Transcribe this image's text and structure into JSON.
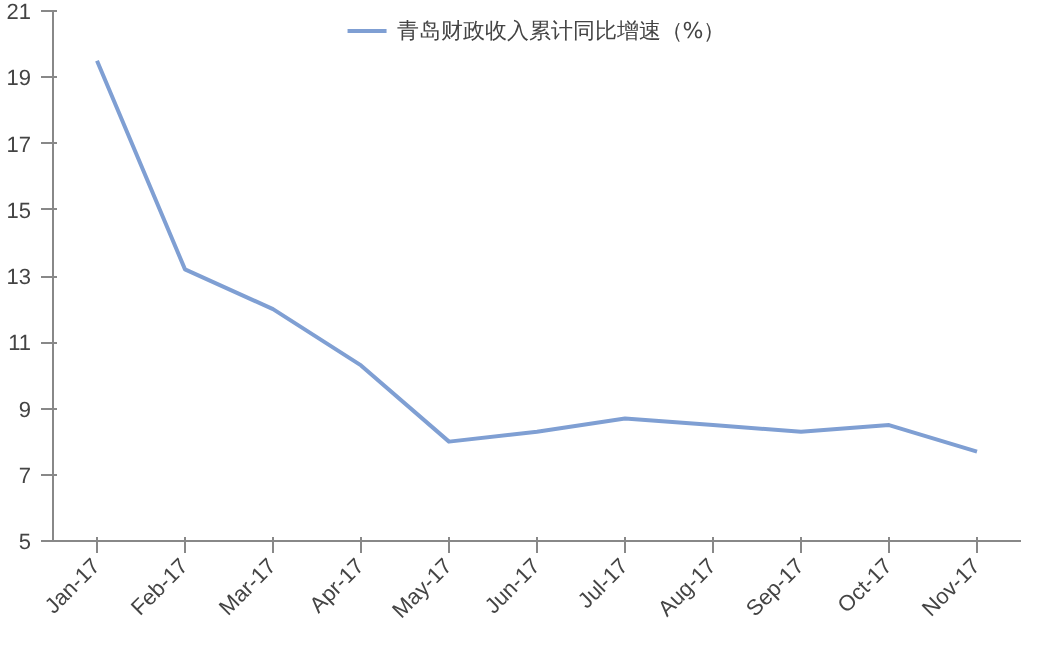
{
  "chart_data": {
    "type": "line",
    "categories": [
      "Jan-17",
      "Feb-17",
      "Mar-17",
      "Apr-17",
      "May-17",
      "Jun-17",
      "Jul-17",
      "Aug-17",
      "Sep-17",
      "Oct-17",
      "Nov-17"
    ],
    "series": [
      {
        "name": "青岛财政收入累计同比增速（%）",
        "color": "#7f9fd3",
        "values": [
          19.5,
          13.2,
          12.0,
          10.3,
          8.0,
          8.3,
          8.7,
          8.5,
          8.3,
          8.5,
          7.7
        ]
      }
    ],
    "ylim": [
      5,
      21
    ],
    "yticks": [
      5,
      7,
      9,
      11,
      13,
      15,
      17,
      19,
      21
    ],
    "grid": false,
    "legend": "top",
    "marker": "none",
    "line_style": "solid"
  }
}
